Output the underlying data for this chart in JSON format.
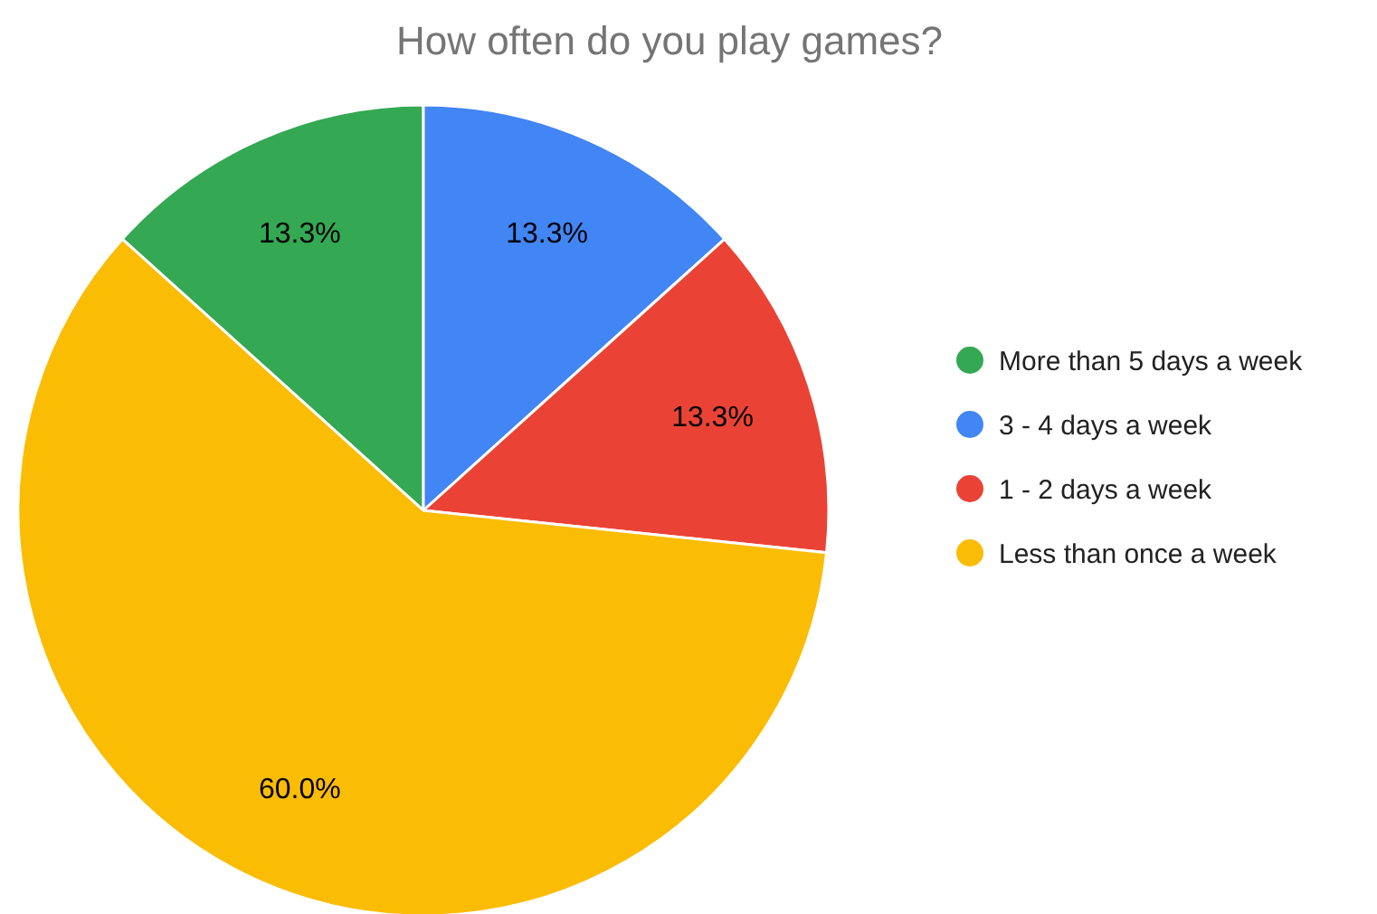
{
  "chart_data": {
    "type": "pie",
    "title": "How often do you play games?",
    "categories": [
      "More than 5 days a week",
      "3 - 4 days a week",
      "1 - 2 days a week",
      "Less than once a week"
    ],
    "values": [
      13.33,
      13.33,
      13.33,
      60.01
    ],
    "colors": [
      "#34a853",
      "#4285f4",
      "#ea4335",
      "#fbbc04"
    ],
    "value_labels": [
      "13.3%",
      "13.3%",
      "13.3%",
      "60.0%"
    ],
    "legend": "right"
  }
}
